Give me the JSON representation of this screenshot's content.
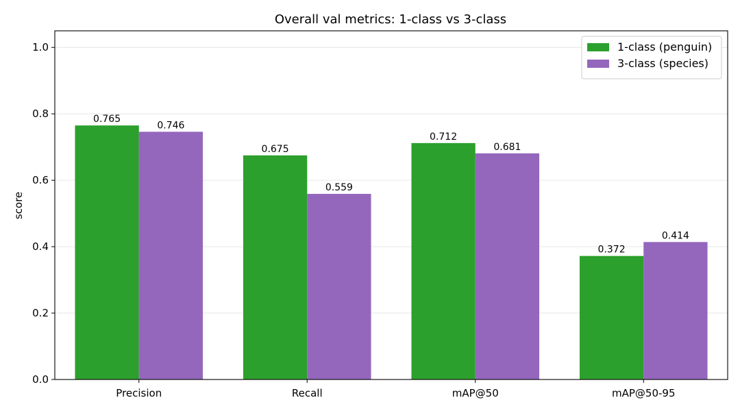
{
  "chart_data": {
    "type": "bar",
    "title": "Overall val metrics: 1-class vs 3-class",
    "xlabel": "",
    "ylabel": "score",
    "ylim": [
      0,
      1.05
    ],
    "yticks": [
      0.0,
      0.2,
      0.4,
      0.6,
      0.8,
      1.0
    ],
    "ytick_labels": [
      "0.0",
      "0.2",
      "0.4",
      "0.6",
      "0.8",
      "1.0"
    ],
    "grid": "horizontal",
    "legend_position": "top-right",
    "categories": [
      "Precision",
      "Recall",
      "mAP@50",
      "mAP@50-95"
    ],
    "series": [
      {
        "name": "1-class (penguin)",
        "color": "#2ca02c",
        "values": [
          0.765,
          0.675,
          0.712,
          0.372
        ],
        "labels": [
          "0.765",
          "0.675",
          "0.712",
          "0.372"
        ]
      },
      {
        "name": "3-class (species)",
        "color": "#9467bd",
        "values": [
          0.746,
          0.559,
          0.681,
          0.414
        ],
        "labels": [
          "0.746",
          "0.559",
          "0.681",
          "0.414"
        ]
      }
    ]
  }
}
